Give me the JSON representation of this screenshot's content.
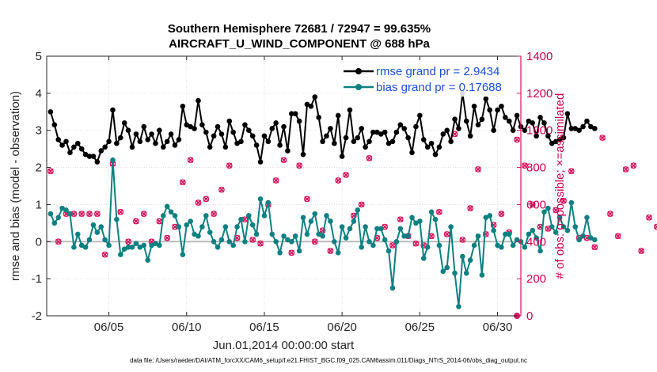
{
  "chart_data": {
    "type": "line",
    "title": "Southern Hemisphere 72681 / 72947 = 99.635%",
    "subtitle": "AIRCRAFT_U_WIND_COMPONENT @ 688 hPa",
    "xlabel": "Jun.01,2014 00:00:00 start",
    "ylabel": "rmse and bias (model - observation)",
    "ylabel_right": "# of obs: o=possible; ×=assimilated",
    "xlim": [
      1.0,
      31.5
    ],
    "ylim": [
      -2,
      5
    ],
    "ylim_right": [
      0,
      1400
    ],
    "xticks": [
      5,
      10,
      15,
      20,
      25,
      30
    ],
    "xtick_labels": [
      "06/05",
      "06/10",
      "06/15",
      "06/20",
      "06/25",
      "06/30"
    ],
    "yticks": [
      "5",
      "4",
      "3",
      "2",
      "1",
      "0",
      "-1",
      "-2"
    ],
    "yticks_right": [
      "1400",
      "1200",
      "1000",
      "800",
      "600",
      "400",
      "200",
      "0"
    ],
    "legend": [
      "rmse grand pr = 2.9434",
      "bias grand pr = 0.17688"
    ],
    "footnote": "data file: /Users/raeder/DAI/ATM_forcXX/CAM6_setup/f.e21.FHIST_BGC.f09_025.CAM6assim.011/Diags_NTrS_2014-06/obs_diag_output.nc",
    "colors": {
      "rmse": "#000000",
      "bias": "#0f8080",
      "obs": "#d6165f",
      "zero": "#bbbbbb"
    },
    "series": [
      {
        "name": "rmse",
        "x_start": 1.25,
        "x_step": 0.25,
        "values": [
          3.5,
          3.15,
          2.75,
          2.6,
          2.7,
          2.4,
          2.55,
          2.65,
          2.5,
          2.35,
          2.3,
          2.3,
          2.15,
          2.45,
          2.55,
          2.7,
          3.55,
          2.65,
          2.8,
          3.2,
          3.0,
          2.55,
          2.9,
          2.7,
          3.1,
          2.75,
          2.9,
          2.65,
          3.0,
          2.55,
          2.7,
          2.9,
          2.6,
          2.75,
          3.65,
          3.15,
          3.1,
          3.05,
          3.8,
          3.15,
          2.95,
          2.55,
          2.85,
          3.1,
          2.9,
          2.55,
          3.25,
          2.95,
          2.65,
          2.7,
          3.15,
          3.0,
          2.85,
          2.6,
          2.15,
          2.85,
          2.7,
          3.05,
          3.2,
          2.6,
          3.1,
          2.45,
          3.45,
          3.45,
          3.25,
          2.35,
          3.7,
          3.65,
          3.9,
          3.35,
          2.7,
          2.85,
          3.05,
          2.65,
          3.4,
          2.3,
          2.8,
          3.55,
          2.7,
          2.8,
          3.05,
          2.55,
          2.7,
          2.95,
          2.95,
          2.9,
          2.95,
          2.65,
          2.7,
          2.95,
          3.15,
          3.05,
          2.8,
          2.4,
          3.1,
          3.4,
          2.75,
          2.55,
          2.65,
          2.35,
          2.55,
          2.9,
          3.0,
          2.7,
          3.3,
          3.05,
          4.0,
          3.25,
          2.85,
          3.65,
          3.15,
          3.3,
          3.85,
          3.55,
          3.0,
          3.55,
          3.65,
          3.35,
          3.25,
          3.0,
          3.4,
          3.1,
          3.0,
          3.25,
          3.2,
          2.85,
          3.35,
          3.2,
          2.85,
          2.65,
          2.7,
          2.75,
          2.8,
          3.45,
          3.05,
          3.05,
          3.0,
          3.1,
          3.25,
          3.1,
          3.05
        ]
      },
      {
        "name": "bias",
        "x_start": 1.25,
        "x_step": 0.25,
        "values": [
          0.75,
          0.5,
          0.65,
          0.9,
          0.85,
          0.75,
          -0.15,
          0.2,
          -0.1,
          -0.15,
          0.05,
          0.45,
          0.25,
          0.4,
          0.05,
          -0.1,
          2.2,
          0.6,
          -0.35,
          -0.2,
          -0.15,
          -0.15,
          -0.05,
          -0.15,
          -0.1,
          -0.5,
          -0.1,
          -0.05,
          -0.1,
          0.7,
          0.95,
          0.8,
          0.7,
          0.4,
          -0.35,
          0.45,
          0.55,
          0.2,
          0.15,
          0.4,
          0.7,
          0.25,
          0.0,
          -0.15,
          0.05,
          0.4,
          0.0,
          -0.1,
          0.4,
          0.6,
          0.0,
          0.7,
          0.45,
          0.2,
          1.15,
          0.7,
          1.05,
          0.2,
          0.0,
          -0.3,
          0.15,
          0.05,
          0.0,
          0.15,
          -0.25,
          0.65,
          0.2,
          0.55,
          0.75,
          0.2,
          0.15,
          0.7,
          0.55,
          0.0,
          -0.3,
          0.4,
          0.1,
          0.35,
          0.55,
          0.85,
          -0.15,
          0.4,
          0.0,
          -0.1,
          0.35,
          0.35,
          0.05,
          -0.25,
          -1.25,
          0.0,
          0.35,
          0.15,
          0.15,
          0.65,
          0.5,
          0.55,
          -0.45,
          -0.15,
          0.8,
          0.6,
          -0.1,
          -0.8,
          -0.7,
          0.4,
          -0.85,
          -1.75,
          -0.4,
          -0.85,
          -0.5,
          -0.1,
          0.15,
          -0.9,
          0.65,
          0.7,
          0.3,
          -0.1,
          -0.15,
          0.2,
          0.2,
          -0.1,
          0.05,
          0.0,
          -0.15,
          0.2,
          0.3,
          0.1,
          -0.25,
          0.8,
          0.9,
          0.4,
          0.25,
          0.65,
          0.4,
          0.3,
          1.05,
          0.4,
          0.05,
          0.15,
          0.65,
          0.1,
          0.05
        ]
      }
    ],
    "obs_markers": {
      "x_start": 1.25,
      "x_step": 0.5,
      "values": [
        780,
        400,
        550,
        550,
        550,
        550,
        550,
        330,
        820,
        560,
        400,
        510,
        550,
        400,
        510,
        420,
        480,
        720,
        840,
        610,
        630,
        550,
        680,
        810,
        420,
        520,
        410,
        390,
        600,
        730,
        840,
        340,
        810,
        630,
        400,
        460,
        350,
        730,
        760,
        540,
        600,
        850,
        420,
        480,
        380,
        520,
        430,
        390,
        380,
        430,
        560,
        440,
        980,
        410,
        580,
        790,
        440,
        490,
        550,
        450,
        950,
        810,
        600,
        480,
        470,
        570,
        620,
        780,
        420,
        420,
        370,
        960,
        550,
        430,
        790,
        810,
        350,
        530,
        480,
        420,
        580,
        450,
        440,
        340,
        780,
        380,
        440,
        430,
        840,
        330,
        410,
        560,
        420,
        450,
        810,
        960,
        510,
        580,
        870,
        510,
        420,
        590,
        930,
        350,
        520,
        460,
        620,
        600,
        750,
        430,
        790,
        380,
        420,
        940,
        330,
        440,
        600,
        560,
        430,
        370,
        640,
        580,
        950,
        720,
        420,
        960,
        670,
        530,
        590,
        520,
        450,
        430,
        440,
        560,
        790,
        470,
        440,
        450,
        440,
        440,
        520,
        440,
        590,
        380,
        450,
        690,
        600,
        770,
        570,
        980,
        490,
        430,
        410,
        440,
        320,
        460,
        370,
        550,
        800,
        650,
        530,
        440,
        470,
        420,
        360,
        370,
        350,
        330,
        370,
        350,
        300,
        500,
        480,
        380,
        400,
        420,
        420,
        440,
        500,
        380
      ]
    },
    "obs_zero_marker": {
      "x": 31.25,
      "value": 0
    }
  }
}
